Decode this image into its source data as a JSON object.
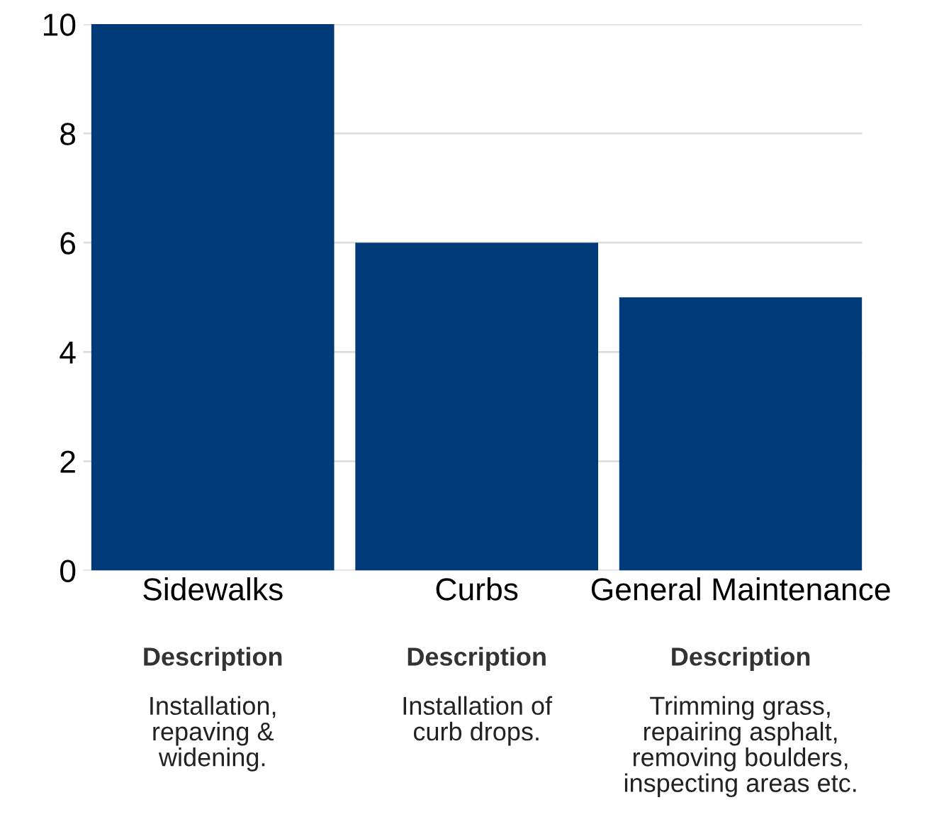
{
  "chart_data": {
    "type": "bar",
    "categories": [
      "Sidewalks",
      "Curbs",
      "General Maintenance"
    ],
    "values": [
      10,
      6,
      5
    ],
    "color": "#003a78",
    "ylim": [
      0,
      10
    ],
    "yticks": [
      0,
      2,
      4,
      6,
      8,
      10
    ],
    "grid": "y",
    "annotations": [
      "Description",
      "Installation,\nrepaving &\nwidening.",
      "Description",
      "Installation of\ncurb drops.",
      "Description",
      "Trimming grass,\nrepairing asphalt,\nremoving boulders,\ninspecting areas etc."
    ]
  }
}
